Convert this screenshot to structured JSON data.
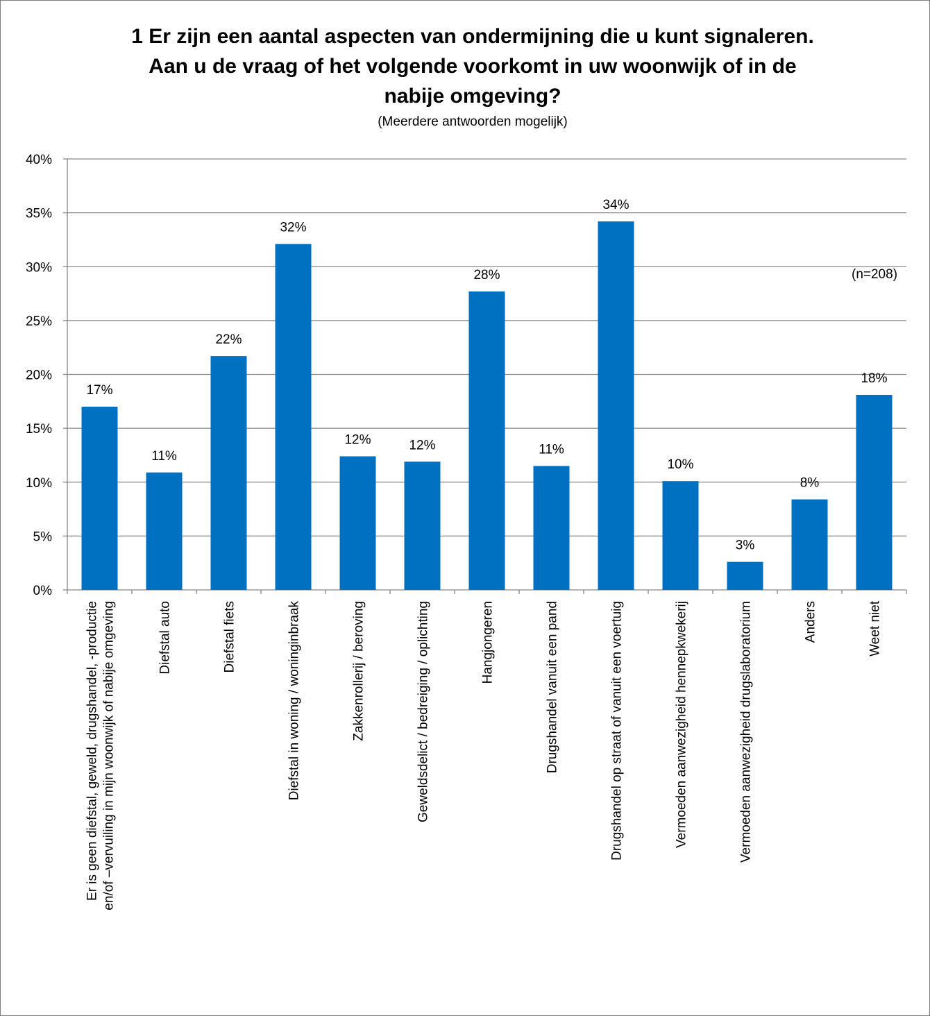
{
  "chart_data": {
    "type": "bar",
    "title": "1 Er zijn een aantal aspecten van ondermijning die u kunt signaleren. Aan u de vraag of het volgende voorkomt in uw woonwijk of in de nabije omgeving?",
    "subtitle": "(Meerdere antwoorden mogelijk)",
    "note": "(n=208)",
    "ylim": [
      0,
      40
    ],
    "yticks": [
      "0%",
      "5%",
      "10%",
      "15%",
      "20%",
      "25%",
      "30%",
      "35%",
      "40%"
    ],
    "grid": true,
    "bar_color": "#0070c0",
    "categories": [
      [
        "Er is geen diefstal, geweld, drugshandel, -productie",
        "en/of –vervuiling in mijn woonwijk of nabije omgeving"
      ],
      [
        "Diefstal auto"
      ],
      [
        "Diefstal fiets"
      ],
      [
        "Diefstal in woning / woninginbraak"
      ],
      [
        "Zakkenrollerij / beroving"
      ],
      [
        "Geweldsdelict / bedreiging / oplichting"
      ],
      [
        "Hangjongeren"
      ],
      [
        "Drugshandel vanuit een pand"
      ],
      [
        "Drugshandel op straat of vanuit een voertuig"
      ],
      [
        "Vermoeden aanwezigheid hennepkwekerij"
      ],
      [
        "Vermoeden aanwezigheid drugslaboratorium"
      ],
      [
        "Anders"
      ],
      [
        "Weet niet"
      ]
    ],
    "values": [
      17.0,
      10.9,
      21.7,
      32.1,
      12.4,
      11.9,
      27.7,
      11.5,
      34.2,
      10.1,
      2.6,
      8.4,
      18.1
    ],
    "data_labels": [
      "17%",
      "11%",
      "22%",
      "32%",
      "12%",
      "12%",
      "28%",
      "11%",
      "34%",
      "10%",
      "3%",
      "8%",
      "18%"
    ]
  }
}
